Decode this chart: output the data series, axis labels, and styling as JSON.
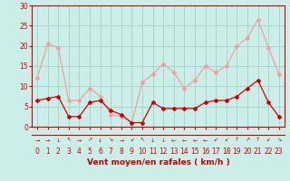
{
  "hours": [
    0,
    1,
    2,
    3,
    4,
    5,
    6,
    7,
    8,
    9,
    10,
    11,
    12,
    13,
    14,
    15,
    16,
    17,
    18,
    19,
    20,
    21,
    22,
    23
  ],
  "wind_avg": [
    6.5,
    7,
    7.5,
    2.5,
    2.5,
    6,
    6.5,
    4,
    3,
    1,
    1,
    6,
    4.5,
    4.5,
    4.5,
    4.5,
    6,
    6.5,
    6.5,
    7.5,
    9.5,
    11.5,
    6,
    2.5
  ],
  "wind_gust": [
    12,
    20.5,
    19.5,
    6.5,
    6.5,
    9.5,
    7.5,
    3,
    2.5,
    1,
    11,
    13,
    15.5,
    13.5,
    9.5,
    11.5,
    15,
    13.5,
    15,
    20,
    22,
    26.5,
    19.5,
    13
  ],
  "avg_color": "#cc0000",
  "gust_color": "#f0a0a0",
  "bg_color": "#cceee8",
  "grid_color": "#aad4ce",
  "xlabel": "Vent moyen/en rafales ( km/h )",
  "ylim": [
    0,
    30
  ],
  "yticks": [
    0,
    5,
    10,
    15,
    20,
    25,
    30
  ],
  "wind_symbols": [
    "→",
    "→",
    "↓",
    "↖",
    "→",
    "↗",
    "↓",
    "↘",
    "→",
    "↙",
    "↖",
    "↓",
    "↓",
    "←",
    "←",
    "←",
    "←",
    "↙",
    "↙",
    "↑",
    "↗",
    "↑",
    "↙",
    "↘"
  ],
  "tick_fontsize": 5.5,
  "label_fontsize": 6.5,
  "arrow_fontsize": 4.5
}
